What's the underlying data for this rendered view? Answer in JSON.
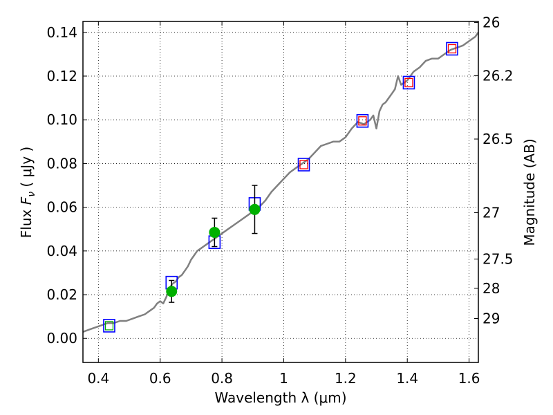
{
  "chart_data": {
    "type": "scatter",
    "xlabel": "Wavelength  λ (μm)",
    "ylabel": "Flux  F_ν ( μJy )",
    "ylabel_parts": {
      "prefix": "Flux  ",
      "symbol": "F",
      "subscript": "ν",
      "unit": "  ( μJy )"
    },
    "y2label": "Magnitude (AB)",
    "xlim": [
      0.35,
      1.63
    ],
    "ylim": [
      -0.011,
      0.145
    ],
    "grid": true,
    "x_ticks": [
      0.4,
      0.6,
      0.8,
      1.0,
      1.2,
      1.4,
      1.6
    ],
    "x_tick_labels": [
      "0.4",
      "0.6",
      "0.8",
      "1",
      "1.2",
      "1.4",
      "1.6"
    ],
    "y_ticks": [
      0.0,
      0.02,
      0.04,
      0.06,
      0.08,
      0.1,
      0.12,
      0.14
    ],
    "y_tick_labels": [
      "0.00",
      "0.02",
      "0.04",
      "0.06",
      "0.08",
      "0.10",
      "0.12",
      "0.14"
    ],
    "y2_tick_labels": [
      "26",
      "26.2",
      "26.5",
      "27",
      "27.5",
      "28",
      "29"
    ],
    "y2_tick_flux": [
      0.1445,
      0.1202,
      0.0912,
      0.0575,
      0.0363,
      0.0229,
      0.0091
    ],
    "colors": {
      "model_line": "#808080",
      "model_box": "#0000ff",
      "observed": "#00b000",
      "error_bar": "#000000",
      "inner_box_red": "#ff0000",
      "inner_box_green": "#00aa00"
    },
    "series": [
      {
        "kind": "line",
        "x": [
          0.35,
          0.37,
          0.39,
          0.41,
          0.43,
          0.45,
          0.47,
          0.49,
          0.51,
          0.53,
          0.55,
          0.57,
          0.58,
          0.59,
          0.6,
          0.61,
          0.62,
          0.63,
          0.64,
          0.65,
          0.66,
          0.67,
          0.68,
          0.69,
          0.7,
          0.71,
          0.72,
          0.73,
          0.74,
          0.75,
          0.76,
          0.77,
          0.78,
          0.79,
          0.8,
          0.82,
          0.84,
          0.86,
          0.88,
          0.9,
          0.92,
          0.94,
          0.96,
          0.98,
          1.0,
          1.02,
          1.04,
          1.06,
          1.08,
          1.1,
          1.12,
          1.14,
          1.16,
          1.18,
          1.2,
          1.22,
          1.24,
          1.26,
          1.28,
          1.29,
          1.3,
          1.31,
          1.32,
          1.33,
          1.34,
          1.35,
          1.36,
          1.37,
          1.38,
          1.4,
          1.42,
          1.44,
          1.46,
          1.48,
          1.5,
          1.52,
          1.54,
          1.56,
          1.58,
          1.6,
          1.62,
          1.63
        ],
        "y": [
          0.003,
          0.004,
          0.005,
          0.006,
          0.007,
          0.007,
          0.008,
          0.008,
          0.009,
          0.01,
          0.011,
          0.013,
          0.014,
          0.016,
          0.017,
          0.016,
          0.019,
          0.023,
          0.025,
          0.026,
          0.028,
          0.029,
          0.031,
          0.033,
          0.036,
          0.038,
          0.04,
          0.041,
          0.042,
          0.043,
          0.044,
          0.045,
          0.046,
          0.047,
          0.048,
          0.05,
          0.052,
          0.054,
          0.056,
          0.058,
          0.06,
          0.063,
          0.067,
          0.07,
          0.073,
          0.076,
          0.078,
          0.08,
          0.082,
          0.085,
          0.088,
          0.089,
          0.09,
          0.09,
          0.092,
          0.096,
          0.099,
          0.098,
          0.1,
          0.102,
          0.096,
          0.104,
          0.107,
          0.108,
          0.11,
          0.112,
          0.114,
          0.12,
          0.116,
          0.118,
          0.122,
          0.124,
          0.127,
          0.128,
          0.128,
          0.13,
          0.132,
          0.133,
          0.134,
          0.136,
          0.138,
          0.14
        ]
      },
      {
        "kind": "box",
        "x": [
          0.435,
          0.637,
          0.776,
          0.906,
          1.065,
          1.255,
          1.405,
          1.545
        ],
        "y": [
          0.0058,
          0.0255,
          0.044,
          0.0615,
          0.0795,
          0.0995,
          0.117,
          0.1325
        ],
        "inner": [
          "green",
          "none",
          "none",
          "none",
          "red",
          "red",
          "red",
          "red"
        ]
      },
      {
        "kind": "points",
        "x": [
          0.637,
          0.776,
          0.906
        ],
        "y": [
          0.0215,
          0.0485,
          0.059
        ],
        "err": [
          0.005,
          0.0065,
          0.011
        ]
      }
    ]
  }
}
